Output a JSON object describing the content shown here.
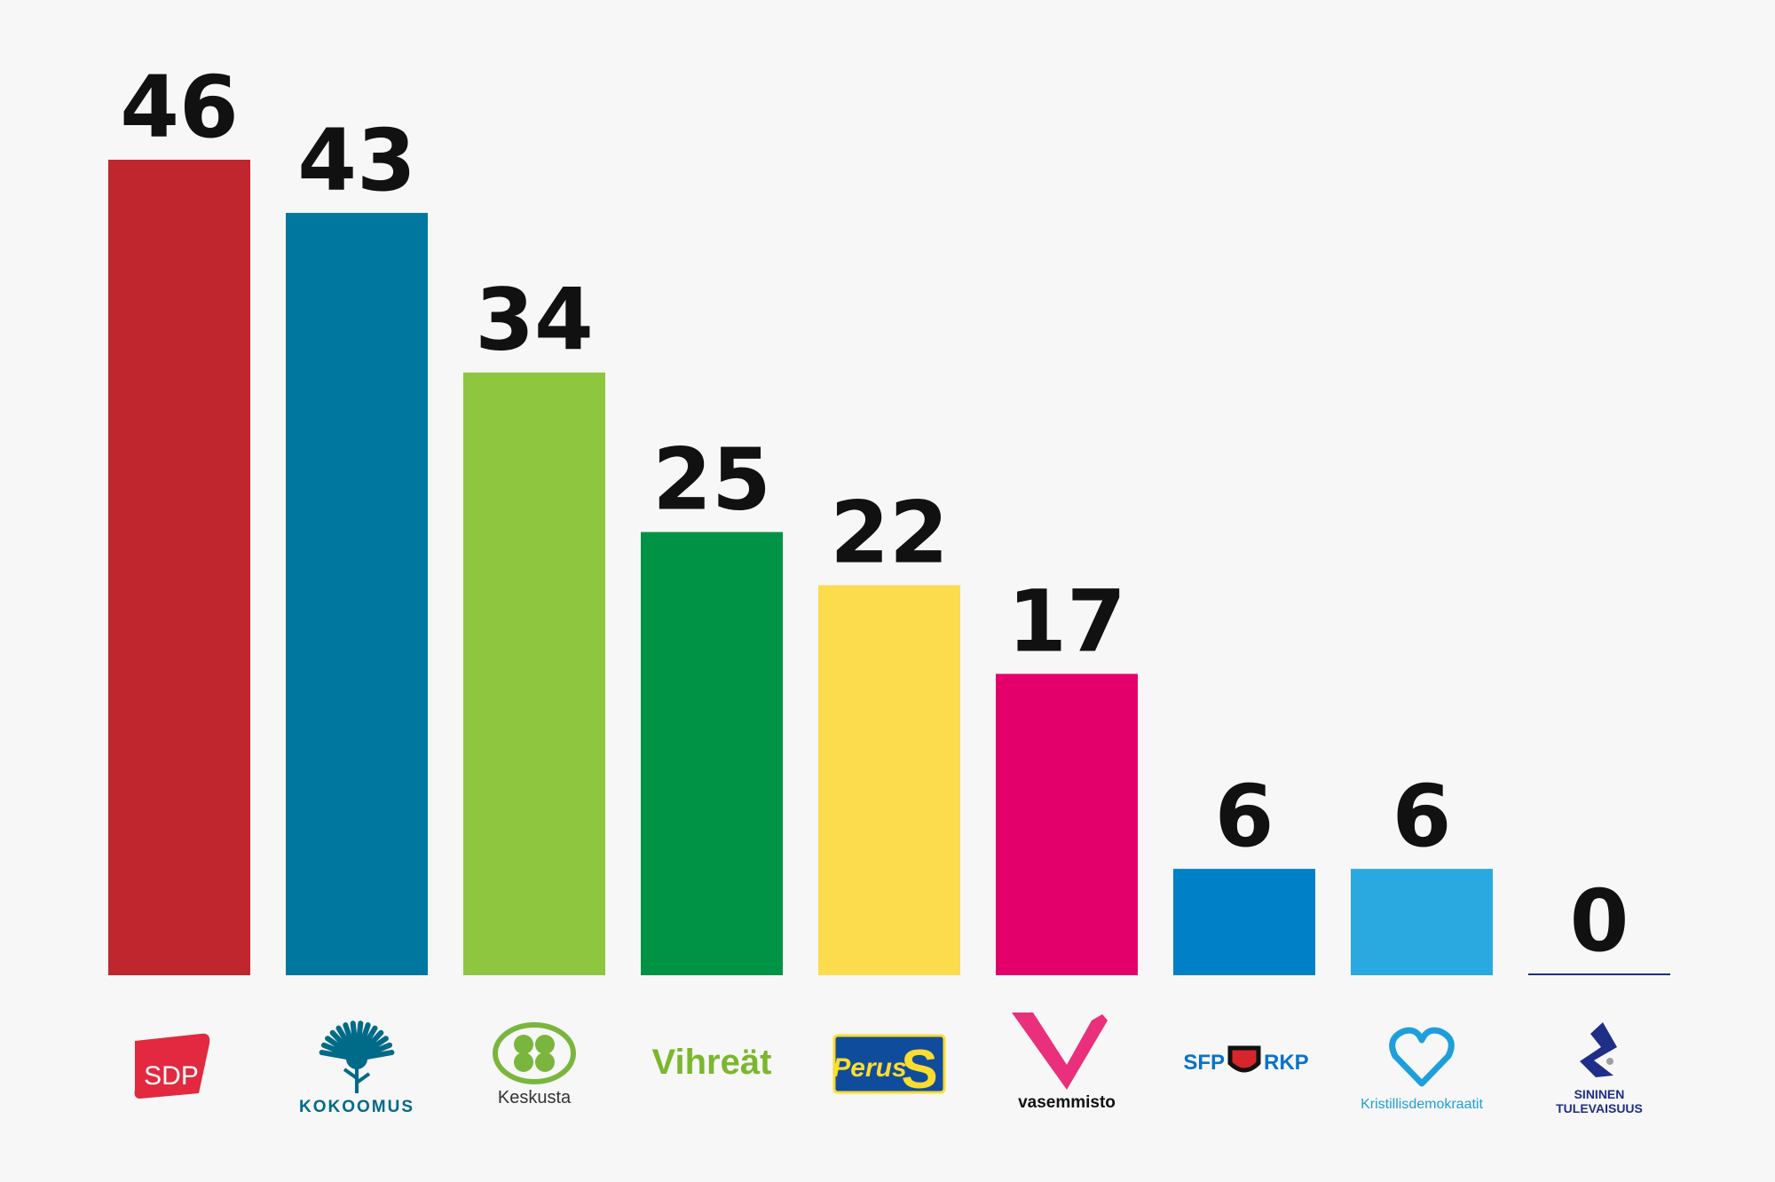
{
  "chart_data": {
    "type": "bar",
    "title": "",
    "xlabel": "",
    "ylabel": "",
    "ylim": [
      0,
      46
    ],
    "grid": false,
    "legend": "none",
    "categories": [
      "SDP",
      "KOKOOMUS",
      "Keskusta",
      "Vihreät",
      "PerusS",
      "vasemmisto",
      "SFP RKP",
      "Kristillisdemokraatit",
      "SININEN TULEVAISUUS"
    ],
    "values": [
      46,
      43,
      34,
      25,
      22,
      17,
      6,
      6,
      0
    ],
    "colors": [
      "#c0262d",
      "#00779f",
      "#8fc640",
      "#009345",
      "#fcdc4d",
      "#e4006a",
      "#0080c6",
      "#2aa9e1",
      "#1f2e86"
    ],
    "value_labels": [
      "46",
      "43",
      "34",
      "25",
      "22",
      "17",
      "6",
      "6",
      "0"
    ]
  },
  "logos": [
    {
      "party": "SDP",
      "icon": "sdp-logo-icon",
      "text": "SDP",
      "color": "#e2293f"
    },
    {
      "party": "KOKOOMUS",
      "icon": "cornflower-icon",
      "text": "KOKOOMUS",
      "color": "#006a89"
    },
    {
      "party": "Keskusta",
      "icon": "four-leaf-clover-icon",
      "text": "Keskusta",
      "color": "#7ab63d"
    },
    {
      "party": "Vihreät",
      "icon": "vihreat-wordmark-icon",
      "text": "Vihreät",
      "color": "#7bb72e"
    },
    {
      "party": "PerusS",
      "icon": "peruss-badge-icon",
      "text": "Perus",
      "badge_letter": "S",
      "color": "#0f4c9c",
      "accent": "#fcdc2f"
    },
    {
      "party": "vasemmisto",
      "icon": "v-bird-icon",
      "text": "vasemmisto",
      "color": "#111111",
      "accent": "#ea2f7c"
    },
    {
      "party": "SFP RKP",
      "icon": "lion-shield-icon",
      "text_left": "SFP",
      "text_right": "RKP",
      "color": "#0a72c9"
    },
    {
      "party": "Kristillisdemokraatit",
      "icon": "kd-heart-icon",
      "text": "Kristillisdemokraatit",
      "color": "#1e9fdb"
    },
    {
      "party": "SININEN TULEVAISUUS",
      "icon": "blue-s-icon",
      "text_line1": "SININEN",
      "text_line2": "TULEVAISUUS",
      "color": "#1f2e86"
    }
  ]
}
